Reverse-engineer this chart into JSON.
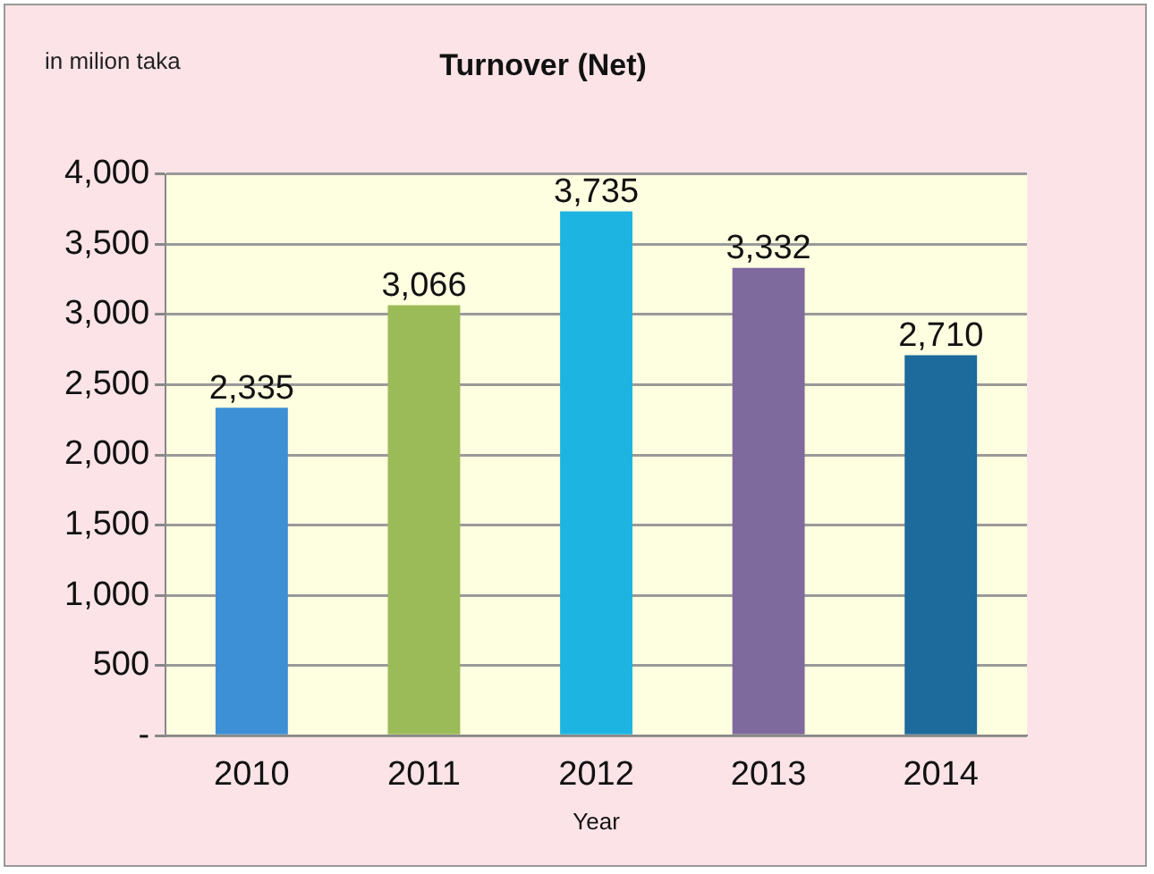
{
  "chart_data": {
    "type": "bar",
    "title": "Turnover (Net)",
    "xlabel": "Year",
    "annotations": [
      "in milion taka"
    ],
    "categories": [
      "2010",
      "2011",
      "2012",
      "2013",
      "2014"
    ],
    "values": [
      2335,
      3066,
      3735,
      3332,
      2710
    ],
    "value_labels": [
      "2,335",
      "3,066",
      "3,735",
      "3,332",
      "2,710"
    ],
    "colors": [
      "#3d8fd6",
      "#9bbb59",
      "#1eb4e2",
      "#7f6a9e",
      "#1d6a9c"
    ],
    "ylim": [
      0,
      4000
    ],
    "yticks": [
      {
        "value": 0,
        "label": "-"
      },
      {
        "value": 500,
        "label": "500"
      },
      {
        "value": 1000,
        "label": "1,000"
      },
      {
        "value": 1500,
        "label": "1,500"
      },
      {
        "value": 2000,
        "label": "2,000"
      },
      {
        "value": 2500,
        "label": "2,500"
      },
      {
        "value": 3000,
        "label": "3,000"
      },
      {
        "value": 3500,
        "label": "3,500"
      },
      {
        "value": 4000,
        "label": "4,000"
      }
    ],
    "grid": "y",
    "legend": false
  }
}
